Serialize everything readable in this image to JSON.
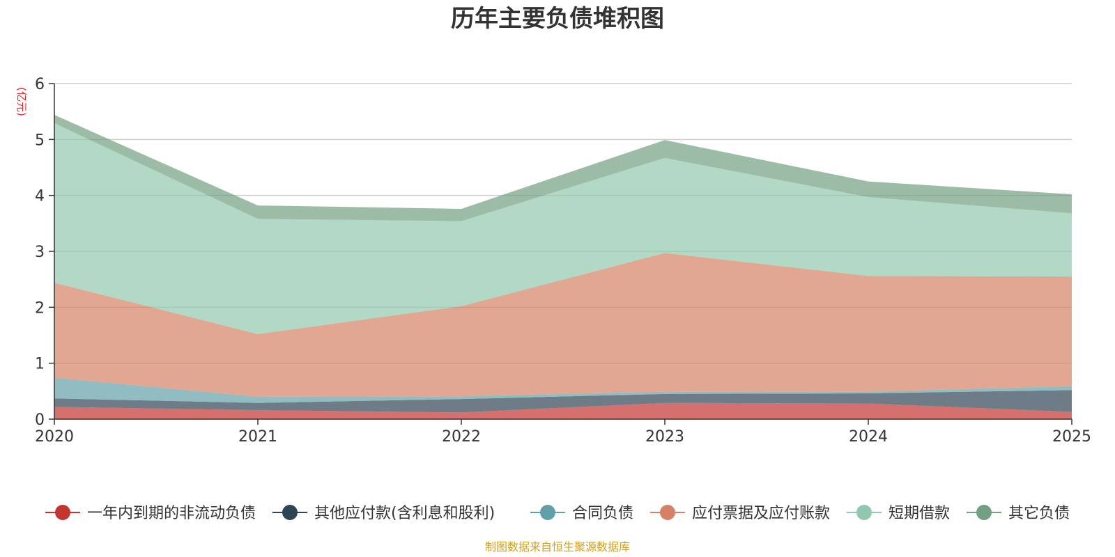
{
  "chart_data": {
    "type": "area",
    "stacked": true,
    "title": "历年主要负债堆积图",
    "unit": "(亿元)",
    "x": [
      "2020",
      "2021",
      "2022",
      "2023",
      "2024",
      "2025"
    ],
    "ylim": [
      0,
      6
    ],
    "yticks": [
      "0",
      "1",
      "2",
      "3",
      "4",
      "5",
      "6"
    ],
    "grid": true,
    "legend_position": "bottom",
    "series": [
      {
        "name": "一年内到期的非流动负债",
        "color": "#c23531",
        "values": [
          0.22,
          0.16,
          0.12,
          0.29,
          0.28,
          0.13
        ]
      },
      {
        "name": "其他应付款(含利息和股利)",
        "color": "#2f4554",
        "values": [
          0.15,
          0.13,
          0.24,
          0.16,
          0.18,
          0.39
        ]
      },
      {
        "name": "合同负债",
        "color": "#61a0a8",
        "values": [
          0.37,
          0.11,
          0.05,
          0.04,
          0.03,
          0.07
        ]
      },
      {
        "name": "应付票据及应付账款",
        "color": "#d48265",
        "values": [
          1.7,
          1.12,
          1.61,
          2.48,
          2.07,
          1.96
        ]
      },
      {
        "name": "短期借款",
        "color": "#91c7ae",
        "values": [
          2.85,
          2.06,
          1.52,
          1.7,
          1.41,
          1.13
        ]
      },
      {
        "name": "其它负债",
        "color": "#749f83",
        "values": [
          0.15,
          0.24,
          0.22,
          0.32,
          0.28,
          0.34
        ]
      }
    ]
  },
  "source": {
    "text": "制图数据来自恒生聚源数据库",
    "color": "#d4a017"
  },
  "unit_color": "#e8252b"
}
